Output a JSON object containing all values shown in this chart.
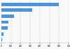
{
  "values": [
    601,
    318,
    131,
    72,
    68,
    19,
    9
  ],
  "bar_color": "#4f93d4",
  "background_color": "#f9f9f9",
  "xlim": [
    0,
    700
  ],
  "xticks": [
    0,
    100,
    200,
    300,
    400,
    500,
    600,
    700
  ],
  "bar_height": 0.55,
  "grid_color": "#cccccc"
}
